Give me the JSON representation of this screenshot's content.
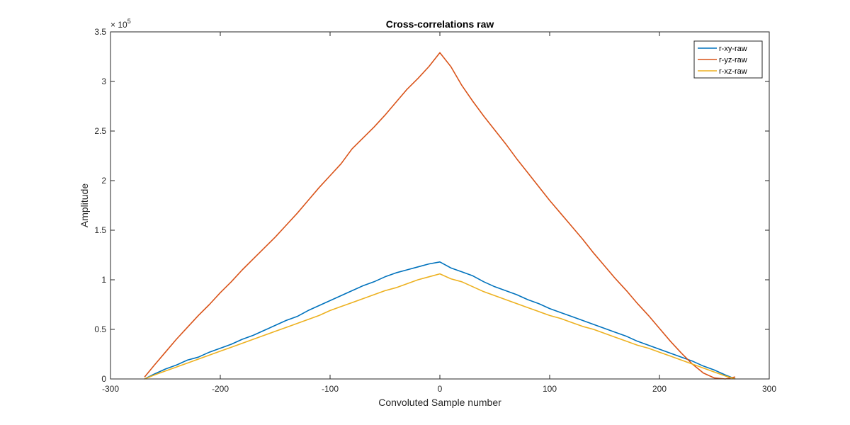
{
  "chart_data": {
    "type": "line",
    "title": "Cross-correlations raw",
    "xlabel": "Convoluted Sample number",
    "ylabel": "Amplitude",
    "xlim": [
      -300,
      300
    ],
    "ylim": [
      0,
      350000
    ],
    "xticks": [
      -300,
      -200,
      -100,
      0,
      100,
      200,
      300
    ],
    "xtick_labels": [
      "-300",
      "-200",
      "-100",
      "0",
      "100",
      "200",
      "300"
    ],
    "yticks": [
      0,
      50000,
      100000,
      150000,
      200000,
      250000,
      300000,
      350000
    ],
    "ytick_labels": [
      "0",
      "0.5",
      "1",
      "1.5",
      "2",
      "2.5",
      "3",
      "3.5"
    ],
    "y_exponent_base": "× 10",
    "y_exponent_power": "5",
    "grid": false,
    "legend_position": "top-right",
    "series": [
      {
        "name": "r-xy-raw",
        "color": "#0072BD",
        "x": [
          -269,
          -260,
          -250,
          -240,
          -230,
          -220,
          -210,
          -200,
          -190,
          -180,
          -170,
          -160,
          -150,
          -140,
          -130,
          -120,
          -110,
          -100,
          -90,
          -80,
          -70,
          -60,
          -50,
          -40,
          -30,
          -20,
          -10,
          0,
          10,
          20,
          30,
          40,
          50,
          60,
          70,
          80,
          90,
          100,
          110,
          120,
          130,
          140,
          150,
          160,
          170,
          180,
          190,
          200,
          210,
          220,
          230,
          240,
          250,
          260,
          269
        ],
        "y": [
          0,
          5000,
          10000,
          14000,
          19000,
          22000,
          27000,
          31000,
          35000,
          40000,
          44000,
          49000,
          54000,
          59000,
          63000,
          69000,
          74000,
          79000,
          84000,
          89000,
          94000,
          98000,
          103000,
          107000,
          110000,
          113000,
          116000,
          118000,
          112000,
          108000,
          104000,
          98000,
          93000,
          89000,
          85000,
          80000,
          76000,
          71000,
          67000,
          63000,
          59000,
          55000,
          51000,
          47000,
          43000,
          38000,
          34000,
          30000,
          26000,
          22000,
          18000,
          13000,
          9000,
          4000,
          0
        ]
      },
      {
        "name": "r-yz-raw",
        "color": "#D95319",
        "x": [
          -269,
          -260,
          -250,
          -240,
          -230,
          -220,
          -210,
          -200,
          -190,
          -180,
          -170,
          -160,
          -150,
          -140,
          -130,
          -120,
          -110,
          -100,
          -90,
          -80,
          -70,
          -60,
          -50,
          -40,
          -30,
          -20,
          -10,
          0,
          10,
          20,
          30,
          40,
          50,
          60,
          70,
          80,
          90,
          100,
          110,
          120,
          130,
          140,
          150,
          160,
          170,
          180,
          190,
          200,
          210,
          220,
          230,
          240,
          250,
          260,
          269
        ],
        "y": [
          2000,
          14000,
          27000,
          40000,
          52000,
          64000,
          75000,
          87000,
          98000,
          110000,
          121000,
          132000,
          143000,
          155000,
          167000,
          180000,
          193000,
          205000,
          217000,
          232000,
          243000,
          254000,
          266000,
          279000,
          292000,
          303000,
          315000,
          329000,
          315000,
          296000,
          280000,
          265000,
          251000,
          237000,
          222000,
          208000,
          194000,
          180000,
          167000,
          154000,
          141000,
          127000,
          114000,
          101000,
          89000,
          76000,
          64000,
          51000,
          38000,
          26000,
          15000,
          6000,
          1000,
          0,
          2000
        ]
      },
      {
        "name": "r-xz-raw",
        "color": "#EDB120",
        "x": [
          -269,
          -260,
          -250,
          -240,
          -230,
          -220,
          -210,
          -200,
          -190,
          -180,
          -170,
          -160,
          -150,
          -140,
          -130,
          -120,
          -110,
          -100,
          -90,
          -80,
          -70,
          -60,
          -50,
          -40,
          -30,
          -20,
          -10,
          0,
          10,
          20,
          30,
          40,
          50,
          60,
          70,
          80,
          90,
          100,
          110,
          120,
          130,
          140,
          150,
          160,
          170,
          180,
          190,
          200,
          210,
          220,
          230,
          240,
          250,
          260,
          269
        ],
        "y": [
          0,
          4000,
          8000,
          12000,
          16000,
          20000,
          24000,
          28000,
          32000,
          36000,
          40000,
          44000,
          48000,
          52000,
          56000,
          60000,
          64000,
          69000,
          73000,
          77000,
          81000,
          85000,
          89000,
          92000,
          96000,
          100000,
          103000,
          106000,
          101000,
          98000,
          93000,
          88000,
          84000,
          80000,
          76000,
          72000,
          68000,
          64000,
          61000,
          57000,
          53000,
          50000,
          46000,
          42000,
          38000,
          34000,
          31000,
          27000,
          23000,
          19000,
          15000,
          11000,
          7000,
          3000,
          0
        ]
      }
    ]
  }
}
